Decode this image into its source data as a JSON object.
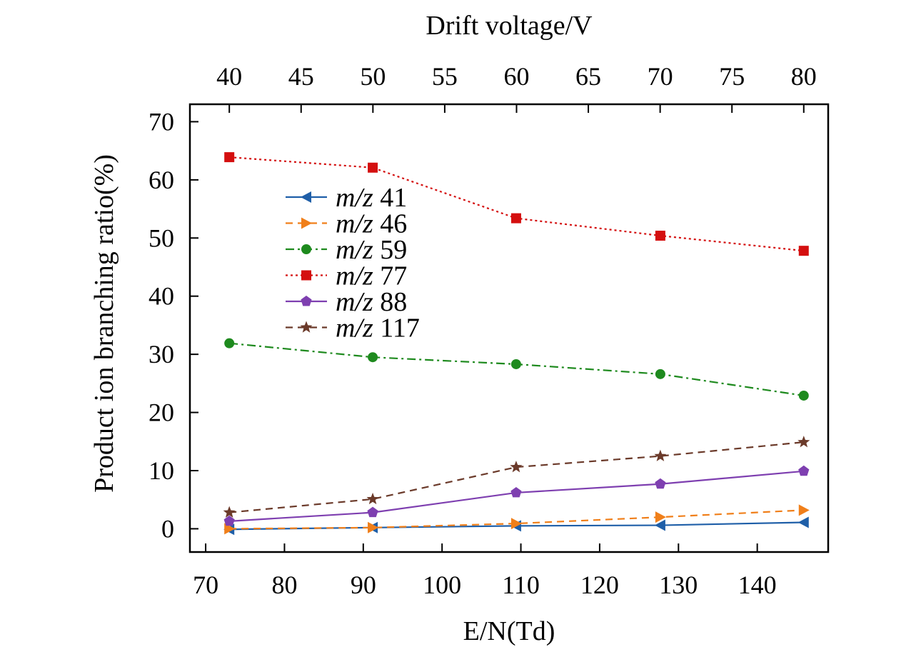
{
  "chart_data": {
    "type": "line",
    "title": "",
    "xlabel": "E/N(Td)",
    "ylabel": "Product ion branching ratio(%)",
    "top_xlabel": "Drift voltage/V",
    "xlim": [
      68,
      149
    ],
    "ylim": [
      -4,
      73
    ],
    "x_ticks": [
      70,
      80,
      90,
      100,
      110,
      120,
      130,
      140
    ],
    "y_ticks": [
      0,
      10,
      20,
      30,
      40,
      50,
      60,
      70
    ],
    "top_ticks": [
      40,
      45,
      50,
      55,
      60,
      65,
      70,
      75,
      80
    ],
    "top_axis_map": {
      "from": [
        40,
        80
      ],
      "to": [
        73.0,
        145.9
      ]
    },
    "grid": false,
    "legend_position": "upper-left",
    "x": [
      73.0,
      91.2,
      109.4,
      127.7,
      145.9
    ],
    "series": [
      {
        "name_italic": "m/z",
        "name_num": "41",
        "values": [
          -0.1,
          0.2,
          0.5,
          0.6,
          1.1
        ],
        "color": "#1f5fa8",
        "dash": "none",
        "marker": "triangle-left"
      },
      {
        "name_italic": "m/z",
        "name_num": "46",
        "values": [
          0.0,
          0.2,
          0.9,
          2.0,
          3.2
        ],
        "color": "#f07f1a",
        "dash": "10,7",
        "marker": "triangle-right"
      },
      {
        "name_italic": "m/z",
        "name_num": "59",
        "values": [
          31.9,
          29.5,
          28.3,
          26.6,
          22.9
        ],
        "color": "#1e8a1e",
        "dash": "12,5,3,5",
        "marker": "circle"
      },
      {
        "name_italic": "m/z",
        "name_num": "77",
        "values": [
          63.9,
          62.1,
          53.4,
          50.4,
          47.8
        ],
        "color": "#d40f0f",
        "dash": "3,4",
        "marker": "square"
      },
      {
        "name_italic": "m/z",
        "name_num": "88",
        "values": [
          1.3,
          2.8,
          6.2,
          7.7,
          9.9
        ],
        "color": "#7e3fb0",
        "dash": "none",
        "marker": "pentagon"
      },
      {
        "name_italic": "m/z",
        "name_num": "117",
        "values": [
          2.8,
          5.1,
          10.6,
          12.5,
          14.9
        ],
        "color": "#6b3a2a",
        "dash": "10,7",
        "marker": "star"
      }
    ]
  }
}
